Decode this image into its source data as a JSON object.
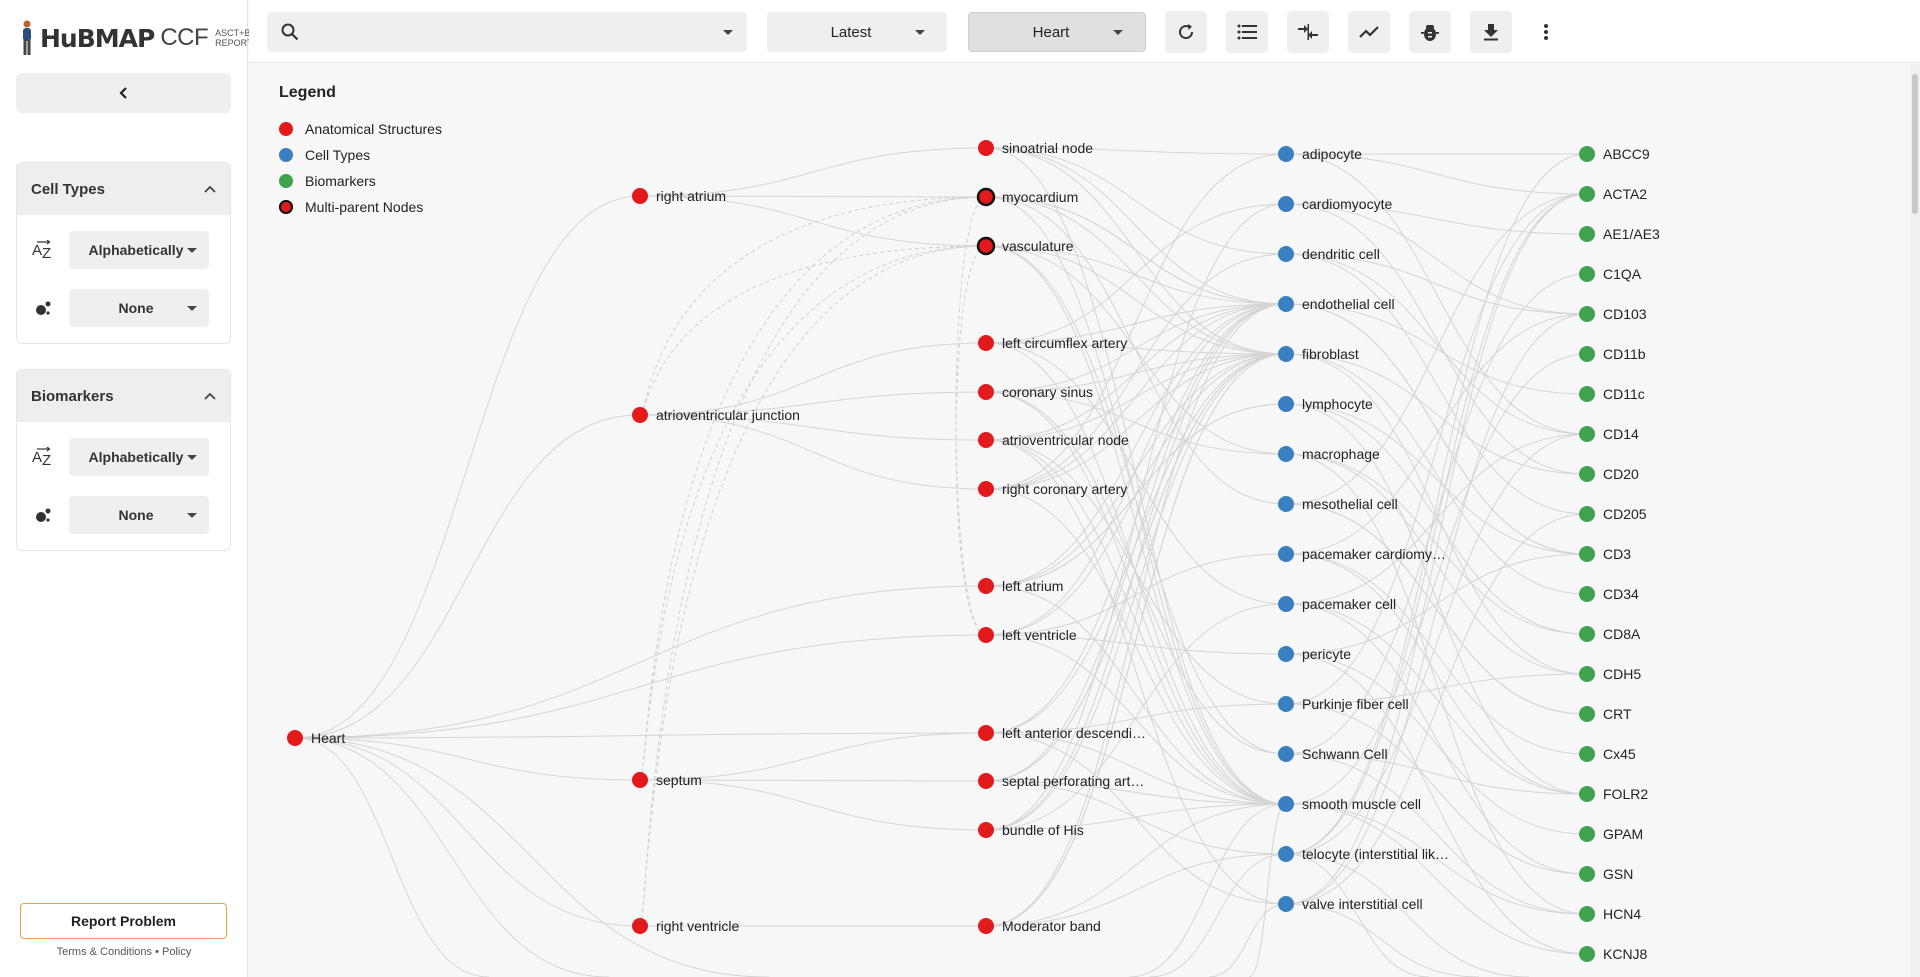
{
  "app": {
    "logo": {
      "brand": "HuBMAP",
      "product": "CCF",
      "subtitle_line1": "ASCT+B",
      "subtitle_line2": "REPORTER"
    }
  },
  "sidebar": {
    "panels": [
      {
        "title": "Cell Types",
        "sort_value": "Alphabetically",
        "size_value": "None"
      },
      {
        "title": "Biomarkers",
        "sort_value": "Alphabetically",
        "size_value": "None"
      }
    ],
    "report_label": "Report Problem",
    "terms_label": "Terms & Conditions",
    "separator": "•",
    "policy_label": "Policy"
  },
  "toolbar": {
    "search_placeholder": "",
    "version_value": "Latest",
    "organ_value": "Heart"
  },
  "legend": {
    "title": "Legend",
    "items": [
      {
        "label": "Anatomical Structures",
        "color": "#e31a1c",
        "ring": false
      },
      {
        "label": "Cell Types",
        "color": "#3a7fc1",
        "ring": false
      },
      {
        "label": "Biomarkers",
        "color": "#3fa34d",
        "ring": false
      },
      {
        "label": "Multi-parent Nodes",
        "color": "#e31a1c",
        "ring": true
      }
    ]
  },
  "colors": {
    "as": "#e31a1c",
    "ct": "#3a7fc1",
    "bm": "#3fa34d",
    "accent": "#f0a04b"
  },
  "graph": {
    "root": "Heart",
    "level1": [
      "right atrium",
      "atrioventricular junction",
      "septum",
      "right ventricle"
    ],
    "level2": [
      {
        "label": "sinoatrial node",
        "multi": false
      },
      {
        "label": "myocardium",
        "multi": true
      },
      {
        "label": "vasculature",
        "multi": true
      },
      {
        "label": "left circumflex artery",
        "multi": false
      },
      {
        "label": "coronary sinus",
        "multi": false
      },
      {
        "label": "atrioventricular node",
        "multi": false
      },
      {
        "label": "right coronary artery",
        "multi": false
      },
      {
        "label": "left atrium",
        "multi": false
      },
      {
        "label": "left ventricle",
        "multi": false
      },
      {
        "label": "left anterior descendi…",
        "multi": false
      },
      {
        "label": "septal perforating art…",
        "multi": false
      },
      {
        "label": "bundle of His",
        "multi": false
      },
      {
        "label": "Moderator band",
        "multi": false
      }
    ],
    "cell_types": [
      "adipocyte",
      "cardiomyocyte",
      "dendritic cell",
      "endothelial cell",
      "fibroblast",
      "lymphocyte",
      "macrophage",
      "mesothelial cell",
      "pacemaker cardiomy…",
      "pacemaker cell",
      "pericyte",
      "Purkinje fiber cell",
      "Schwann Cell",
      "smooth muscle cell",
      "telocyte (interstitial lik…",
      "valve interstitial cell"
    ],
    "biomarkers": [
      "ABCC9",
      "ACTA2",
      "AE1/AE3",
      "C1QA",
      "CD103",
      "CD11b",
      "CD11c",
      "CD14",
      "CD20",
      "CD205",
      "CD3",
      "CD34",
      "CD8A",
      "CDH5",
      "CRT",
      "Cx45",
      "FOLR2",
      "GPAM",
      "GSN",
      "HCN4",
      "KCNJ8"
    ]
  }
}
